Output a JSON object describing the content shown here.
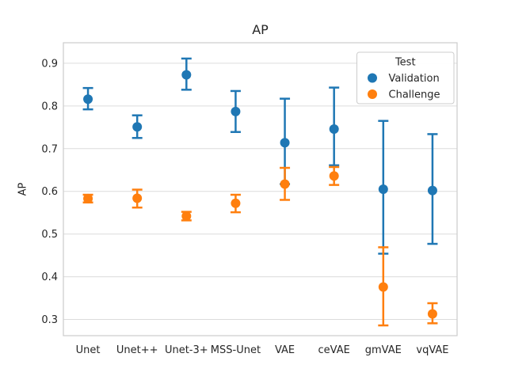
{
  "chart_data": {
    "type": "scatter",
    "title": "AP",
    "xlabel": "",
    "ylabel": "AP",
    "categories": [
      "Unet",
      "Unet++",
      "Unet-3+",
      "MSS-Unet",
      "VAE",
      "ceVAE",
      "gmVAE",
      "vqVAE"
    ],
    "series": [
      {
        "name": "Validation",
        "color": "#1f77b4",
        "values": [
          0.816,
          0.751,
          0.873,
          0.787,
          0.714,
          0.746,
          0.605,
          0.602
        ],
        "err_lo": [
          0.792,
          0.725,
          0.838,
          0.739,
          0.617,
          0.661,
          0.454,
          0.477
        ],
        "err_hi": [
          0.842,
          0.778,
          0.911,
          0.835,
          0.817,
          0.843,
          0.765,
          0.734
        ]
      },
      {
        "name": "Challenge",
        "color": "#ff7f0e",
        "values": [
          0.583,
          0.584,
          0.542,
          0.572,
          0.617,
          0.636,
          0.376,
          0.313
        ],
        "err_lo": [
          0.574,
          0.562,
          0.532,
          0.551,
          0.58,
          0.615,
          0.286,
          0.291
        ],
        "err_hi": [
          0.592,
          0.604,
          0.552,
          0.592,
          0.655,
          0.657,
          0.469,
          0.338
        ]
      }
    ],
    "legend": {
      "title": "Test",
      "position": "upper right"
    },
    "yticks": [
      "0.3",
      "0.4",
      "0.5",
      "0.6",
      "0.7",
      "0.8",
      "0.9"
    ],
    "ylim": [
      0.262,
      0.948
    ],
    "grid": true,
    "colors": {
      "grid": "#dcdcdc",
      "spine": "#cccccc",
      "text": "#262626",
      "legend_border": "#cccccc",
      "background": "#ffffff"
    }
  }
}
